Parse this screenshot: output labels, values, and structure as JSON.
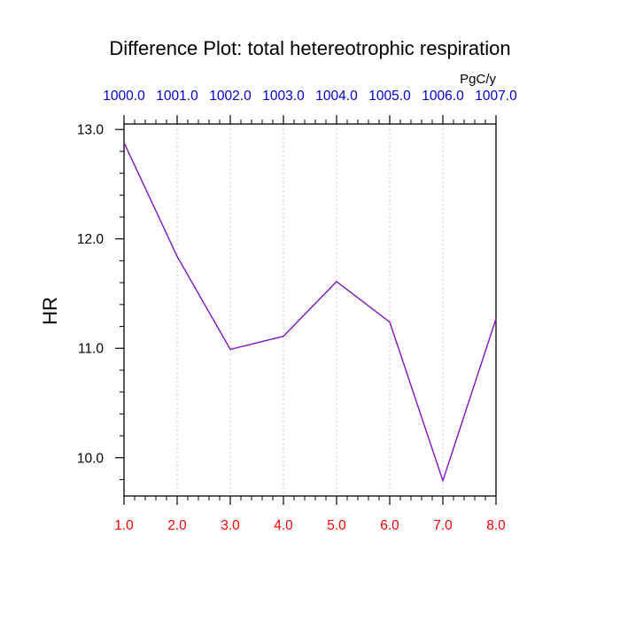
{
  "chart_data": {
    "type": "line",
    "title": "Difference Plot: total hetereotrophic respiration",
    "units": "PgC/y",
    "ylabel": "HR",
    "xlabel": "",
    "x": [
      1.0,
      2.0,
      3.0,
      4.0,
      5.0,
      6.0,
      7.0,
      8.0
    ],
    "xlim": [
      1.0,
      8.0
    ],
    "ylim": [
      9.65,
      13.05
    ],
    "x_ticks": [
      "1.0",
      "2.0",
      "3.0",
      "4.0",
      "5.0",
      "6.0",
      "7.0",
      "8.0"
    ],
    "top_ticks": [
      "1000.0",
      "1001.0",
      "1002.0",
      "1003.0",
      "1004.0",
      "1005.0",
      "1006.0",
      "1007.0"
    ],
    "y_ticks": [
      {
        "value": 10.0,
        "label": "10.0"
      },
      {
        "value": 11.0,
        "label": "11.0"
      },
      {
        "value": 12.0,
        "label": "12.0"
      },
      {
        "value": 13.0,
        "label": "13.0"
      }
    ],
    "series": [
      {
        "values": [
          12.88,
          11.84,
          10.99,
          11.11,
          11.61,
          11.24,
          9.79,
          11.27
        ],
        "color": "#3a1fb0"
      }
    ],
    "grid": "vertical-dotted",
    "colors": {
      "bottom_ticks": "#ff0000",
      "top_ticks": "#0000cc",
      "y_ticks": "#000000",
      "line": "#3a1fb0",
      "line_dash": "#cc00cc",
      "grid": "#c8c8c8"
    }
  }
}
